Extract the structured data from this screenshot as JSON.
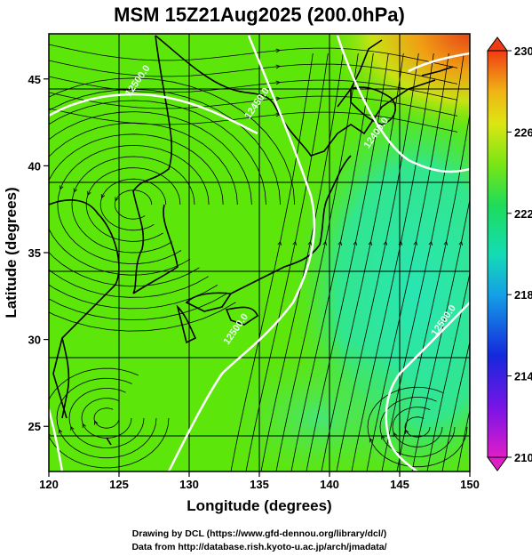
{
  "title": "MSM 15Z21Aug2025 (200.0hPa)",
  "xlabel": "Longitude (degrees)",
  "ylabel": "Latitude  (degrees)",
  "credit_line1": "Drawing by DCL (https://www.gfd-dennou.org/library/dcl/)",
  "credit_line2": "Data from http://database.rish.kyoto-u.ac.jp/arch/jmadata/",
  "chart_data": {
    "type": "heatmap",
    "field": "temperature with wind streamlines and geopotential height contours",
    "xlim": [
      120,
      150
    ],
    "ylim": [
      22.4,
      47.6
    ],
    "xticks": [
      "120",
      "125",
      "130",
      "135",
      "140",
      "145",
      "150"
    ],
    "yticks": [
      "25",
      "30",
      "35",
      "40",
      "45"
    ],
    "colorbar": {
      "min": 210,
      "max": 230,
      "ticks": [
        "210",
        "214",
        "218",
        "222",
        "226",
        "230"
      ]
    },
    "contour_labels": [
      {
        "text": "12500.0",
        "lon": 126.5,
        "lat": 44.8
      },
      {
        "text": "12450.0",
        "lon": 135.0,
        "lat": 43.5
      },
      {
        "text": "12400.0",
        "lon": 143.5,
        "lat": 41.8
      },
      {
        "text": "12500.0",
        "lon": 133.5,
        "lat": 30.5
      },
      {
        "text": "12500.0",
        "lon": 148.3,
        "lat": 31.0
      }
    ],
    "colors": {
      "field_main": "#5de60a",
      "cold_region": "#28e6a0",
      "warm_region": "#e8461e",
      "contour": "#ffffff",
      "streamline": "#000000"
    }
  }
}
